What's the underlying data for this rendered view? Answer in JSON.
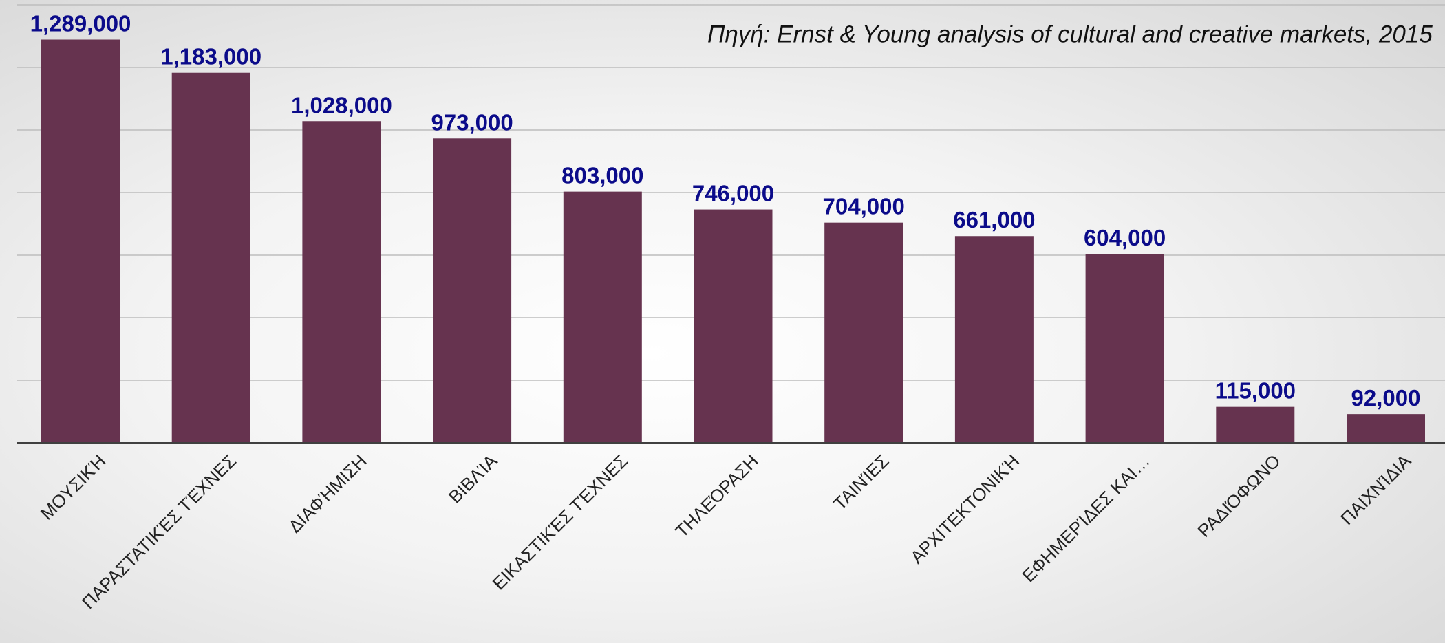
{
  "chart_data": {
    "type": "bar",
    "subtitle": "Πηγή: Ernst & Young analysis of cultural and creative markets, 2015",
    "categories": [
      "ΜΟΥΣΙΚΉ",
      "ΠΑΡΑΣΤΑΤΙΚΈΣ ΤΈΧΝΕΣ",
      "ΔΙΑΦΉΜΙΣΗ",
      "ΒΙΒΛΊΑ",
      "ΕΙΚΑΣΤΙΚΈΣ ΤΈΧΝΕΣ",
      "ΤΗΛΕΌΡΑΣΗ",
      "ΤΑΙΝΊΕΣ",
      "ΑΡΧΙΤΕΚΤΟΝΙΚΉ",
      "ΕΦΗΜΕΡΊΔΕΣ ΚΑΙ…",
      "ΡΑΔΙΌΦΩΝΟ",
      "ΠΑΙΧΝΊΔΙΑ"
    ],
    "values": [
      1289000,
      1183000,
      1028000,
      973000,
      803000,
      746000,
      704000,
      661000,
      604000,
      115000,
      92000
    ],
    "value_labels": [
      "1,289,000",
      "1,183,000",
      "1,028,000",
      "973,000",
      "803,000",
      "746,000",
      "704,000",
      "661,000",
      "604,000",
      "115,000",
      "92,000"
    ],
    "color": "#66334f",
    "ylim": [
      0,
      1400000
    ],
    "yticks": [
      0,
      200000,
      400000,
      600000,
      800000,
      1000000,
      1200000,
      1400000
    ],
    "grid": true
  }
}
